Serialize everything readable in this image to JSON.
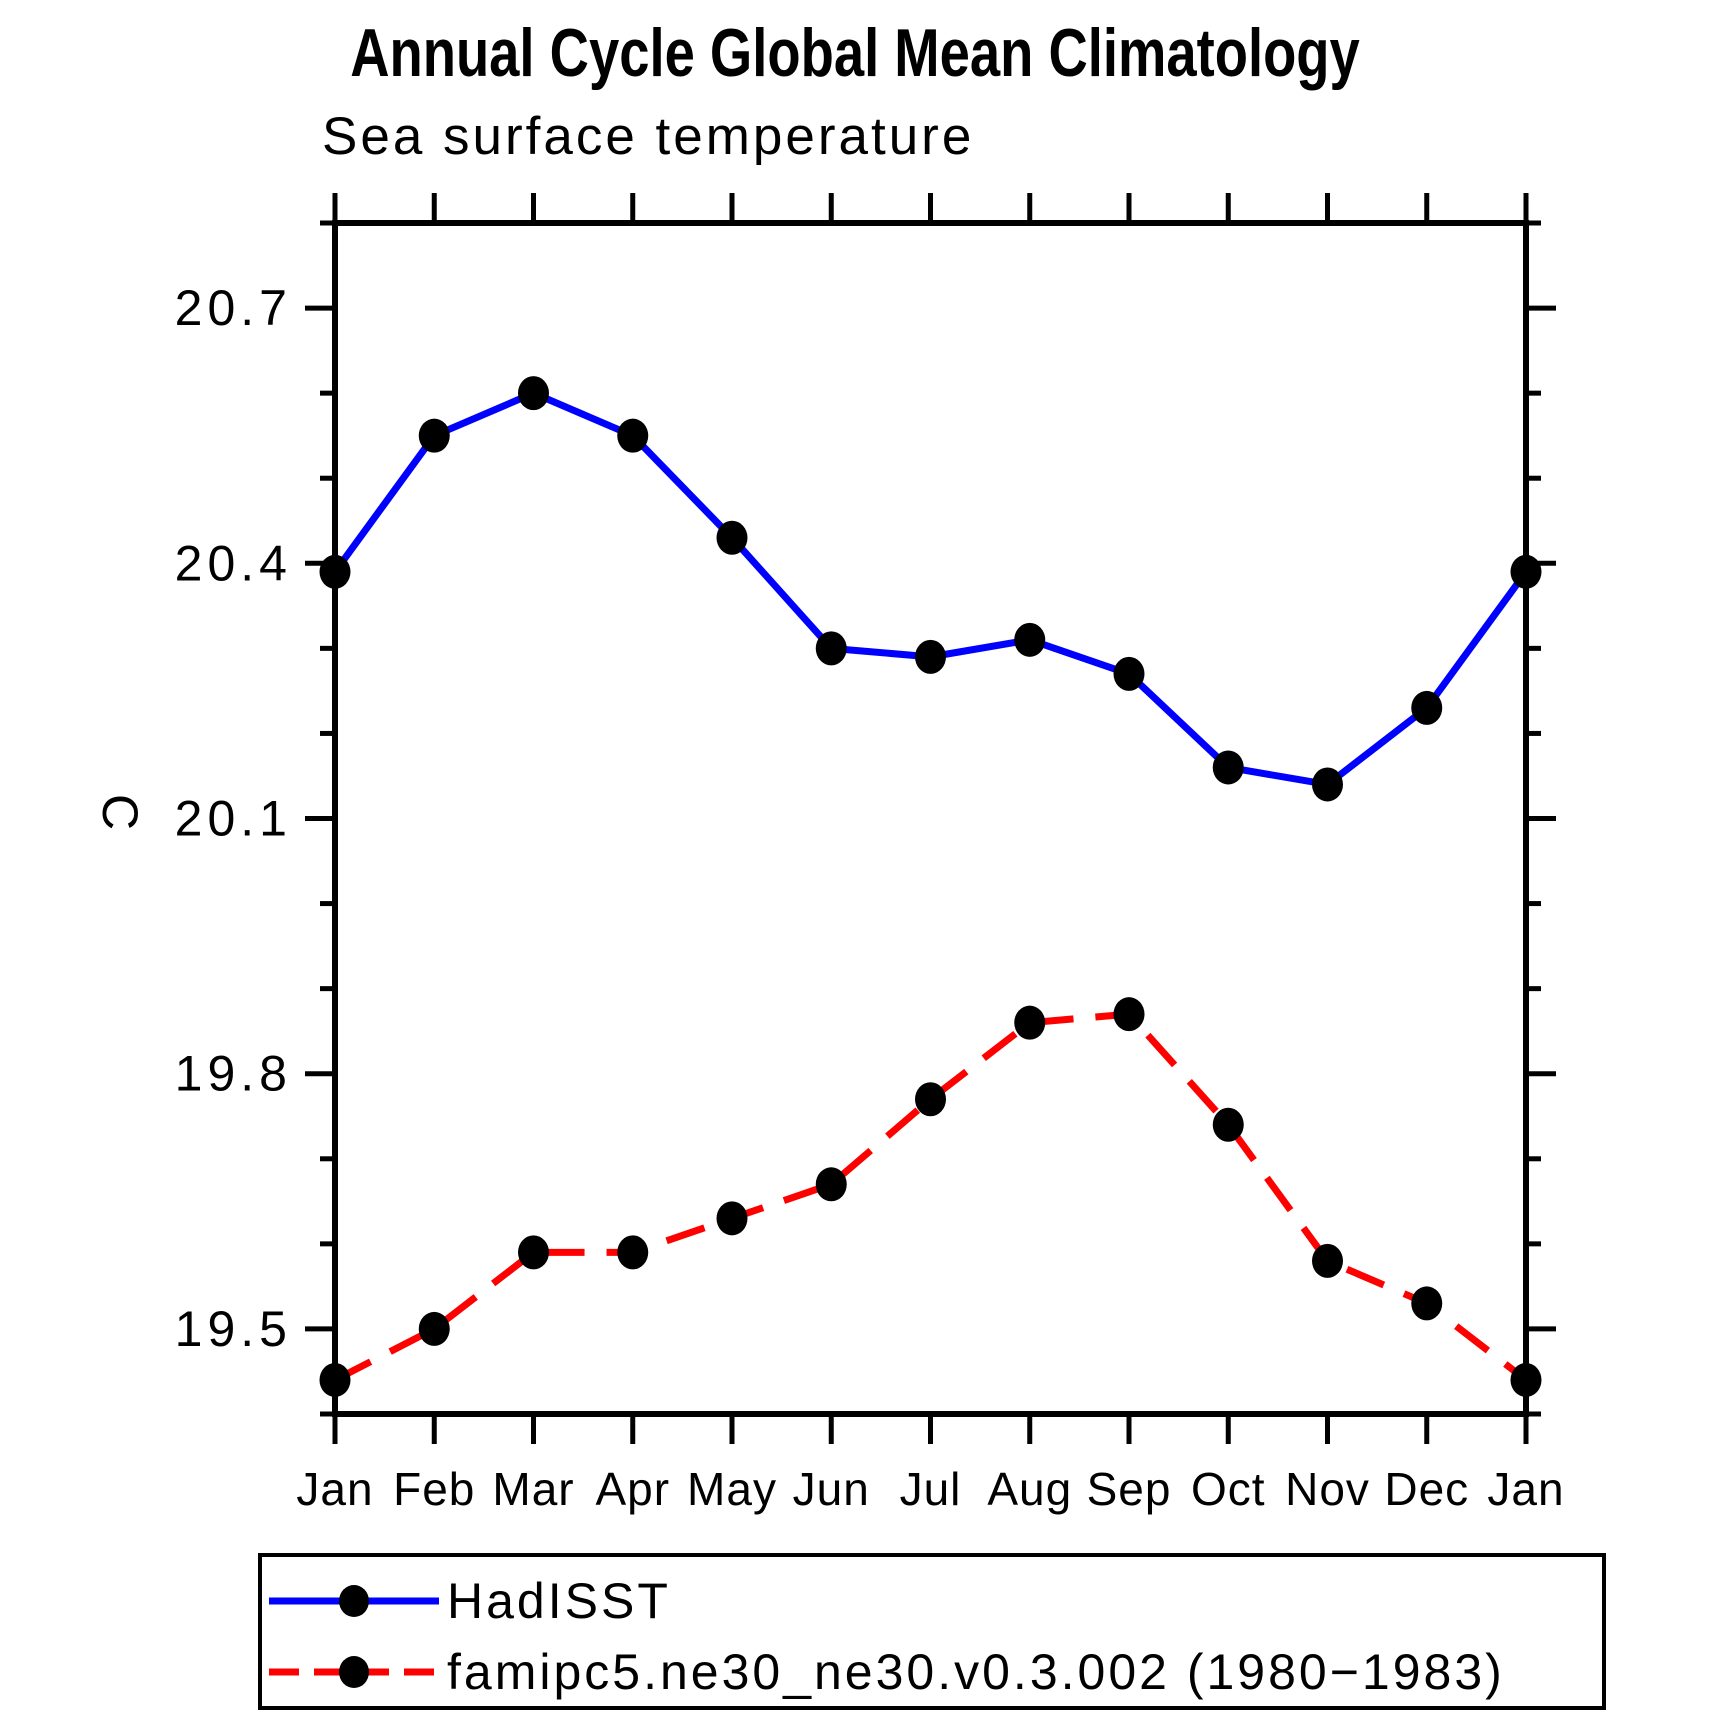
{
  "chart_data": {
    "type": "line",
    "title": "Annual Cycle Global Mean Climatology",
    "subtitle": "Sea surface temperature",
    "ylabel": "C",
    "categories": [
      "Jan",
      "Feb",
      "Mar",
      "Apr",
      "May",
      "Jun",
      "Jul",
      "Aug",
      "Sep",
      "Oct",
      "Nov",
      "Dec",
      "Jan"
    ],
    "yticks": [
      19.5,
      19.8,
      20.1,
      20.4,
      20.7
    ],
    "minor_tick_step": 0.1,
    "ylim": [
      19.4,
      20.8
    ],
    "grid": false,
    "legend_position": "bottom",
    "axis_color": "#000000",
    "marker_color": "#000000",
    "series": [
      {
        "name": "HadISST",
        "color": "#0000ff",
        "line_style": "solid",
        "marker": "circle",
        "values": [
          20.39,
          20.55,
          20.6,
          20.55,
          20.43,
          20.3,
          20.29,
          20.31,
          20.27,
          20.16,
          20.14,
          20.23,
          20.39
        ]
      },
      {
        "name": "famipc5.ne30_ne30.v0.3.002 (1980−1983)",
        "color": "#ff0000",
        "line_style": "dashed",
        "marker": "circle",
        "values": [
          19.44,
          19.5,
          19.59,
          19.59,
          19.63,
          19.67,
          19.77,
          19.86,
          19.87,
          19.74,
          19.58,
          19.53,
          19.44
        ]
      }
    ]
  }
}
